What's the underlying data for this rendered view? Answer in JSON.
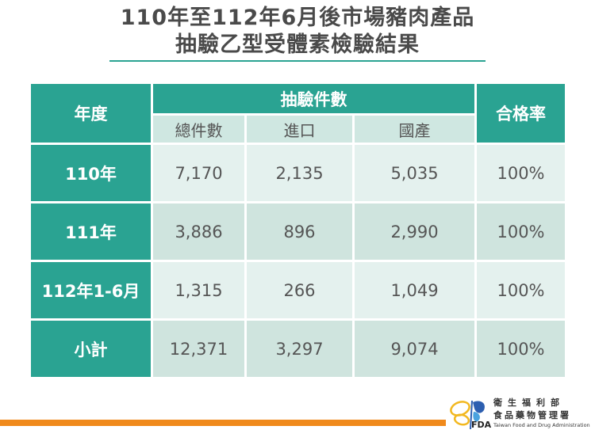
{
  "title": {
    "line1": "110年至112年6月後市場豬肉產品",
    "line2": "抽驗乙型受體素檢驗結果"
  },
  "table": {
    "header": {
      "year": "年度",
      "group": "抽驗件數",
      "rate": "合格率",
      "sub": [
        "總件數",
        "進口",
        "國產"
      ]
    },
    "rows": [
      {
        "year": "110年",
        "total": "7,170",
        "import": "2,135",
        "domestic": "5,035",
        "rate": "100%"
      },
      {
        "year": "111年",
        "total": "3,886",
        "import": "896",
        "domestic": "2,990",
        "rate": "100%"
      },
      {
        "year": "112年1-6月",
        "total": "1,315",
        "import": "266",
        "domestic": "1,049",
        "rate": "100%"
      },
      {
        "year": "小計",
        "total": "12,371",
        "import": "3,297",
        "domestic": "9,074",
        "rate": "100%"
      }
    ]
  },
  "logo": {
    "line1": "衛生福利部",
    "line2": "食品藥物管理署",
    "abbr": "FDA",
    "english": "Taiwan Food and Drug Administration"
  },
  "colors": {
    "teal": "#2aa392",
    "light_row": "#e4f1ee",
    "mid_row": "#cfe4de",
    "orange": "#f08a1c"
  }
}
